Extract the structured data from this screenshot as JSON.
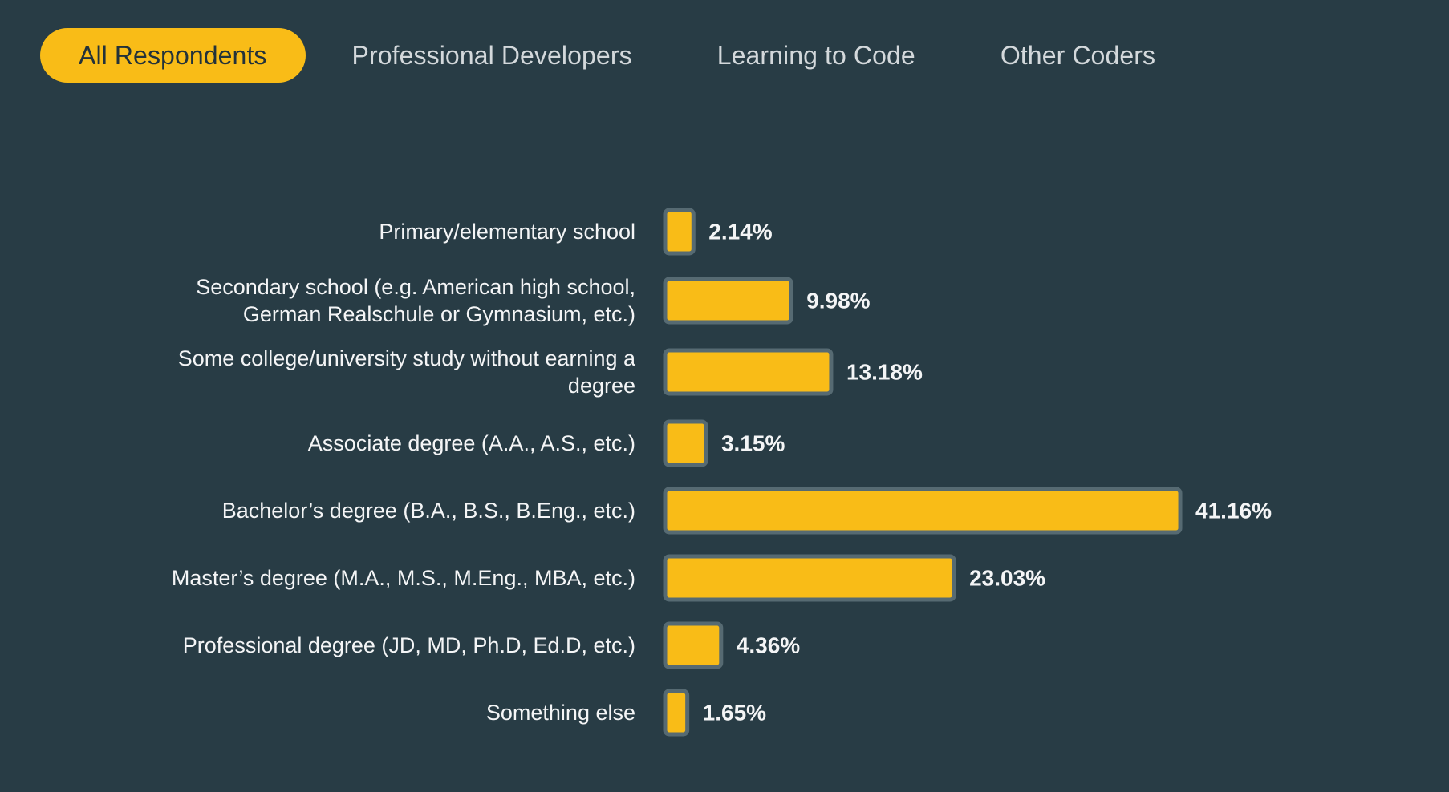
{
  "tabs": [
    {
      "label": "All Respondents",
      "active": true
    },
    {
      "label": "Professional Developers",
      "active": false
    },
    {
      "label": "Learning to Code",
      "active": false
    },
    {
      "label": "Other Coders",
      "active": false
    }
  ],
  "colors": {
    "background": "#283c45",
    "accent": "#f9bc17",
    "bar_border": "#566a72",
    "text": "#f4f5f6",
    "tab_text": "#d3d8db"
  },
  "chart_data": {
    "type": "bar",
    "orientation": "horizontal",
    "title": "",
    "xlabel": "",
    "ylabel": "",
    "grid": false,
    "unit": "%",
    "categories": [
      [
        "Primary/elementary school"
      ],
      [
        "Secondary school (e.g. American high school,",
        "German Realschule or Gymnasium, etc.)"
      ],
      [
        "Some college/university study without earning a",
        "degree"
      ],
      [
        "Associate degree (A.A., A.S., etc.)"
      ],
      [
        "Bachelor’s degree (B.A., B.S., B.Eng., etc.)"
      ],
      [
        "Master’s degree (M.A., M.S., M.Eng., MBA, etc.)"
      ],
      [
        "Professional degree (JD, MD, Ph.D, Ed.D, etc.)"
      ],
      [
        "Something else"
      ]
    ],
    "values": [
      2.14,
      9.98,
      13.18,
      3.15,
      41.16,
      23.03,
      4.36,
      1.65
    ],
    "value_labels": [
      "2.14%",
      "9.98%",
      "13.18%",
      "3.15%",
      "41.16%",
      "23.03%",
      "4.36%",
      "1.65%"
    ]
  }
}
